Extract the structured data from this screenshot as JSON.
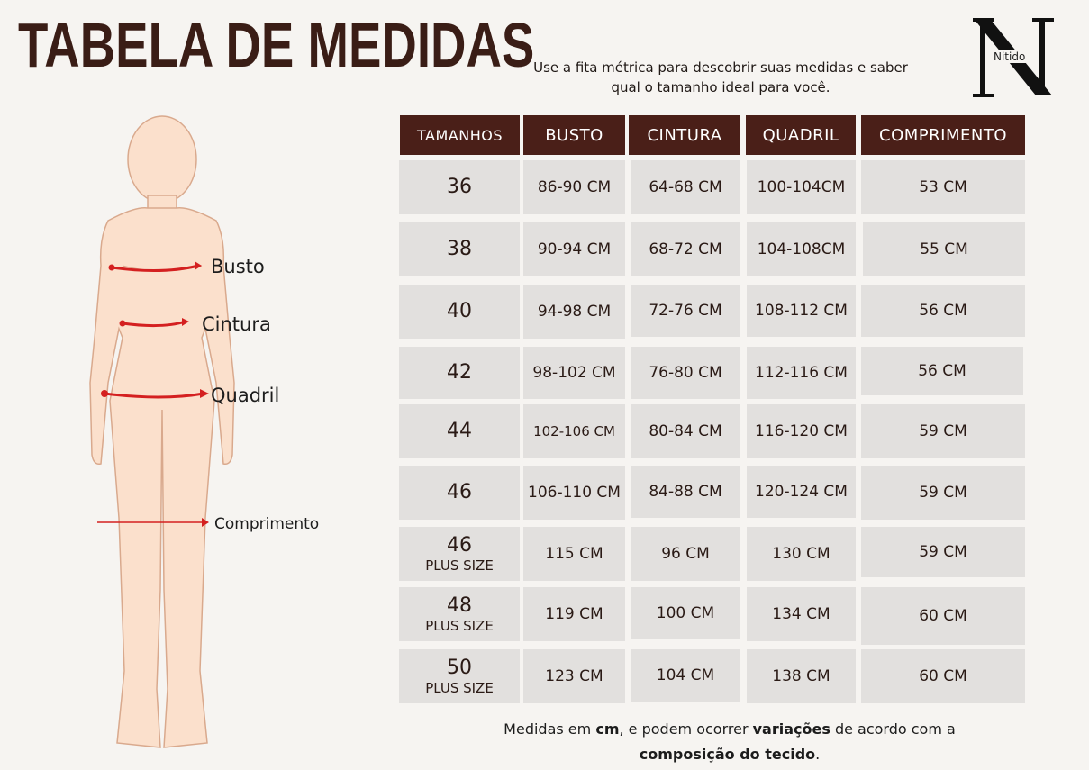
{
  "title": "TABELA DE MEDIDAS",
  "subtitle_line1": "Use a fita métrica para descobrir suas medidas e saber",
  "subtitle_line2": "qual o tamanho ideal para você.",
  "logo": {
    "letter": "N",
    "text": "Nitido"
  },
  "body_labels": {
    "busto": "Busto",
    "cintura": "Cintura",
    "quadril": "Quadril",
    "comprimento": "Comprimento"
  },
  "table": {
    "headers": [
      "TAMANHOS",
      "BUSTO",
      "CINTURA",
      "QUADRIL",
      "COMPRIMENTO"
    ],
    "rows": [
      {
        "size": "36",
        "sub": "",
        "busto": "86-90 CM",
        "cintura": "64-68 CM",
        "quadril": "100-104CM",
        "comprimento": "53 CM"
      },
      {
        "size": "38",
        "sub": "",
        "busto": "90-94 CM",
        "cintura": "68-72 CM",
        "quadril": "104-108CM",
        "comprimento": "55 CM"
      },
      {
        "size": "40",
        "sub": "",
        "busto": "94-98 CM",
        "cintura": "72-76 CM",
        "quadril": "108-112 CM",
        "comprimento": "56 CM"
      },
      {
        "size": "42",
        "sub": "",
        "busto": "98-102 CM",
        "cintura": "76-80 CM",
        "quadril": "112-116  CM",
        "comprimento": "56 CM"
      },
      {
        "size": "44",
        "sub": "",
        "busto": "102-106 CM",
        "cintura": "80-84  CM",
        "quadril": "116-120 CM",
        "comprimento": "59 CM"
      },
      {
        "size": "46",
        "sub": "",
        "busto": "106-110 CM",
        "cintura": "84-88 CM",
        "quadril": "120-124 CM",
        "comprimento": "59 CM"
      },
      {
        "size": "46",
        "sub": "PLUS SIZE",
        "busto": "115 CM",
        "cintura": "96 CM",
        "quadril": "130 CM",
        "comprimento": "59 CM"
      },
      {
        "size": "48",
        "sub": "PLUS SIZE",
        "busto": "119 CM",
        "cintura": "100 CM",
        "quadril": "134 CM",
        "comprimento": "60 CM"
      },
      {
        "size": "50",
        "sub": "PLUS SIZE",
        "busto": "123 CM",
        "cintura": "104 CM",
        "quadril": "138 CM",
        "comprimento": "60 CM"
      }
    ]
  },
  "footnote": {
    "p1": "Medidas em ",
    "b1": "cm",
    "p2": ", e podem ocorrer ",
    "b2": "variações",
    "p3": " de acordo com  a",
    "b3": "composição do tecido",
    "p4": "."
  },
  "colors": {
    "header_bg": "#4a1f18",
    "cell_bg": "#e2e0de",
    "measure_line": "#d42020",
    "skin": "#fbe0cc"
  }
}
